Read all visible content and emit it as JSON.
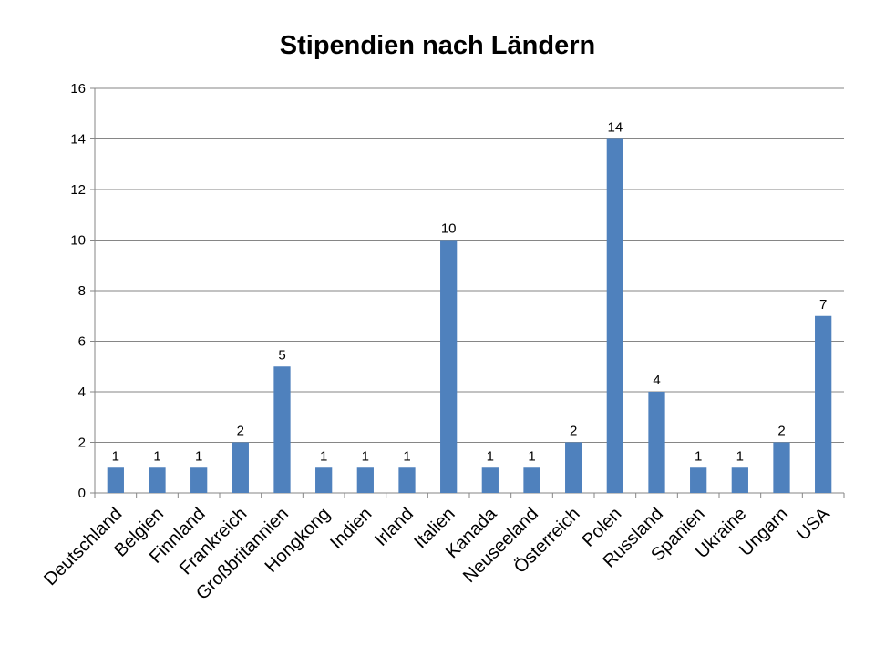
{
  "chart_data": {
    "type": "bar",
    "title": "Stipendien nach Ländern",
    "categories": [
      "Deutschland",
      "Belgien",
      "Finnland",
      "Frankreich",
      "Großbritannien",
      "Hongkong",
      "Indien",
      "Irland",
      "Italien",
      "Kanada",
      "Neuseeland",
      "Österreich",
      "Polen",
      "Russland",
      "Spanien",
      "Ukraine",
      "Ungarn",
      "USA"
    ],
    "values": [
      1,
      1,
      1,
      2,
      5,
      1,
      1,
      1,
      10,
      1,
      1,
      2,
      14,
      4,
      1,
      1,
      2,
      7
    ],
    "ylim": [
      0,
      16
    ],
    "yticks": [
      0,
      2,
      4,
      6,
      8,
      10,
      12,
      14,
      16
    ],
    "grid": true,
    "legend": "none",
    "data_labels": true,
    "bar_color": "#4F81BD"
  }
}
